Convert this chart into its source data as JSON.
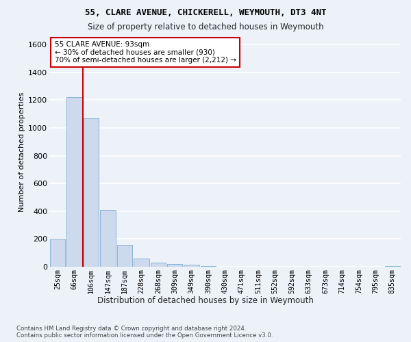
{
  "title1": "55, CLARE AVENUE, CHICKERELL, WEYMOUTH, DT3 4NT",
  "title2": "Size of property relative to detached houses in Weymouth",
  "xlabel": "Distribution of detached houses by size in Weymouth",
  "ylabel": "Number of detached properties",
  "categories": [
    "25sqm",
    "66sqm",
    "106sqm",
    "147sqm",
    "187sqm",
    "228sqm",
    "268sqm",
    "309sqm",
    "349sqm",
    "390sqm",
    "430sqm",
    "471sqm",
    "511sqm",
    "552sqm",
    "592sqm",
    "633sqm",
    "673sqm",
    "714sqm",
    "754sqm",
    "795sqm",
    "835sqm"
  ],
  "values": [
    200,
    1220,
    1070,
    410,
    160,
    60,
    30,
    20,
    15,
    5,
    0,
    0,
    0,
    0,
    0,
    0,
    0,
    0,
    0,
    0,
    5
  ],
  "bar_color": "#cdd9ec",
  "bar_edge_color": "#7aacd0",
  "vline_color": "#cc0000",
  "vline_pos": 1.5,
  "annotation_text": "55 CLARE AVENUE: 93sqm\n← 30% of detached houses are smaller (930)\n70% of semi-detached houses are larger (2,212) →",
  "annotation_box_color": "#cc0000",
  "ylim": [
    0,
    1650
  ],
  "yticks": [
    0,
    200,
    400,
    600,
    800,
    1000,
    1200,
    1400,
    1600
  ],
  "footnote": "Contains HM Land Registry data © Crown copyright and database right 2024.\nContains public sector information licensed under the Open Government Licence v3.0.",
  "background_color": "#edf2f9",
  "plot_bg_color": "#edf2f9",
  "grid_color": "#ffffff"
}
